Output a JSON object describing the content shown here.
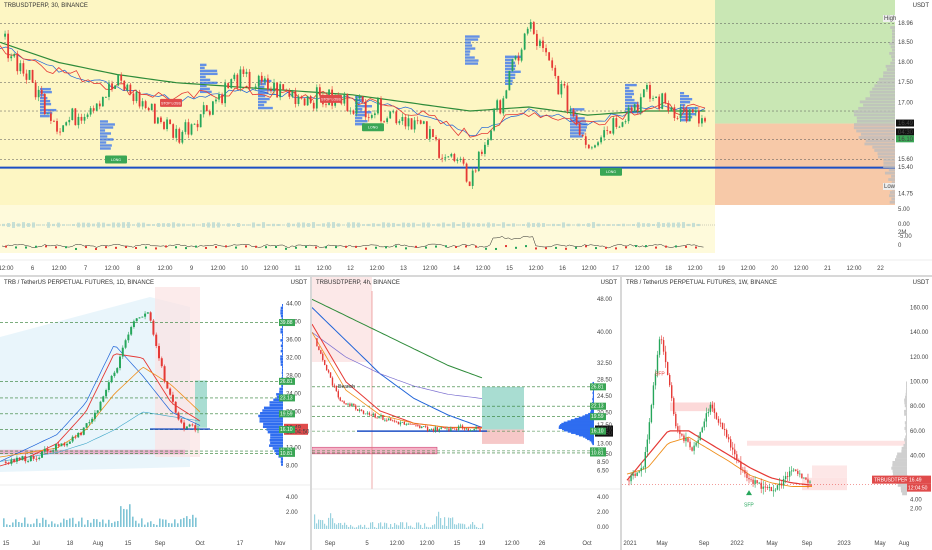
{
  "colors": {
    "bg_top": "#fdf6c3",
    "green_zone": "#c9e7b4",
    "red_zone": "#f7c9a8",
    "support_line": "#1d4fc4",
    "ma_green": "#2e8b3a",
    "ma_red": "#e53935",
    "ma_orange": "#ef8f1c",
    "ma_blue": "#1e63d8",
    "candle_up": "#26a65b",
    "candle_down": "#e53935",
    "volume_profile": "#2f6df0",
    "last_price_bg": "#111111",
    "tag_green": "#3aa655",
    "tag_red": "#e04b4b"
  },
  "top": {
    "title": "TRBUSDTPERP, 30, BINANCE",
    "unit": "USDT",
    "price_labels": [
      "18.96",
      "18.50",
      "18.00",
      "17.50",
      "17.00",
      "16.49",
      "04:30",
      "16.10",
      "15.60",
      "15.40",
      "14.75"
    ],
    "high_label": "High",
    "low_label": "Low",
    "osc_labels": [
      "5.00",
      "0.00",
      "-5.00",
      "2M",
      "0"
    ],
    "time_labels": [
      "12:00",
      "6",
      "12:00",
      "7",
      "12:00",
      "8",
      "12:00",
      "9",
      "12:00",
      "10",
      "12:00",
      "11",
      "12:00",
      "12",
      "12:00",
      "13",
      "12:00",
      "14",
      "12:00",
      "15",
      "12:00",
      "16",
      "12:00",
      "17",
      "12:00",
      "18",
      "12:00",
      "19",
      "12:00",
      "20",
      "12:00",
      "21",
      "12:00",
      "22"
    ],
    "boxes": [
      "STOP LOSS",
      "STOP LOSS",
      "LONG",
      "LONG",
      "LONG"
    ]
  },
  "bl": {
    "title": "TRB / TetherUS PERPETUAL FUTURES, 1D, BINANCE",
    "unit": "USDT",
    "price_labels": [
      "44.00",
      "40.00",
      "36.00",
      "32.00",
      "28.00",
      "24.00",
      "20.00",
      "16.49",
      "12:04:50",
      "12.00",
      "8.00"
    ],
    "tags": [
      "39.88",
      "26.81",
      "23.13",
      "19.59",
      "16.10",
      "11.32",
      "10.81"
    ],
    "vol_labels": [
      "4.00",
      "2.00"
    ],
    "time_labels": [
      "15",
      "Jul",
      "18",
      "Aug",
      "15",
      "Sep",
      "Oct",
      "17",
      "Nov"
    ]
  },
  "bm": {
    "title": "TRBUSDTPERP, 4h, BINANCE",
    "unit": "USDT",
    "annotation": "Bearish",
    "price_labels": [
      "48.00",
      "40.00",
      "32.50",
      "28.50",
      "24.50",
      "20.50",
      "17.50",
      "16.49",
      "04:50",
      "13.00",
      "10.50",
      "8.50",
      "6.50"
    ],
    "tags": [
      "26.81",
      "22.13",
      "19.59",
      "16.10",
      "11.32",
      "10.81"
    ],
    "vol_labels": [
      "4.00",
      "2.00",
      "0.00"
    ],
    "time_labels": [
      "Sep",
      "5",
      "12:00",
      "12:00",
      "15",
      "19",
      "12:00",
      "26",
      "Oct"
    ]
  },
  "br": {
    "title": "TRB / TetherUS PERPETUAL FUTURES, 1W, BINANCE",
    "unit": "USDT",
    "annotation": "SFP",
    "annotation2": "SFP",
    "price_labels": [
      "160.00",
      "140.00",
      "120.00",
      "100.00",
      "80.00",
      "60.00",
      "40.00",
      "20.00",
      "4.00",
      "2.00"
    ],
    "symbol_tag": "TRBUSDTPERP",
    "last_price": "16.49",
    "countdown": "12:04:50",
    "time_labels": [
      "2021",
      "May",
      "Sep",
      "2022",
      "May",
      "Sep",
      "2023",
      "May",
      "Aug"
    ]
  },
  "chart_data": [
    {
      "type": "line",
      "title": "TRBUSDTPERP, 30, BINANCE",
      "description_of_axis": "USDT",
      "ylim": [
        14.6,
        19.1
      ],
      "x": [
        "6",
        "7",
        "8",
        "9",
        "10",
        "11",
        "12",
        "13",
        "14",
        "15",
        "16",
        "17",
        "18"
      ],
      "series": [
        {
          "values": [
            18.6,
            16.4,
            17.5,
            16.2,
            17.6,
            17.2,
            17.0,
            16.6,
            15.1,
            18.9,
            16.0,
            17.2,
            16.5
          ]
        },
        {
          "values": [
            18.4,
            17.8,
            17.4,
            17.1,
            17.3,
            17.2,
            17.1,
            16.8,
            16.2,
            16.8,
            16.5,
            16.9,
            16.8
          ]
        }
      ],
      "levels": [
        15.4,
        16.1,
        16.49
      ]
    },
    {
      "type": "line",
      "title": "TRB / TetherUS PERPETUAL FUTURES, 1D, BINANCE",
      "ylim": [
        6,
        46
      ],
      "x": [
        "Jun 15",
        "Jul",
        "Jul 18",
        "Aug",
        "Aug 15",
        "Sep",
        "Sep 15"
      ],
      "series": [
        {
          "values": [
            9,
            10,
            12,
            15,
            27,
            42,
            17
          ]
        }
      ],
      "levels": [
        39.88,
        26.81,
        23.13,
        19.59,
        16.1,
        11.32,
        10.81
      ]
    },
    {
      "type": "line",
      "title": "TRBUSDTPERP, 4h, BINANCE",
      "ylim": [
        5,
        50
      ],
      "x": [
        "Sep",
        "5",
        "12",
        "15",
        "19"
      ],
      "series": [
        {
          "values": [
            38,
            24,
            20,
            17,
            16.5
          ]
        }
      ],
      "levels": [
        26.81,
        22.13,
        19.59,
        16.1,
        11.32,
        10.81
      ]
    },
    {
      "type": "line",
      "title": "TRB / TetherUS PERPETUAL FUTURES, 1W, BINANCE",
      "ylim": [
        0,
        170
      ],
      "x": [
        "2021",
        "May",
        "Sep",
        "2022",
        "May",
        "Sep"
      ],
      "series": [
        {
          "values": [
            30,
            140,
            45,
            60,
            18,
            25
          ]
        }
      ]
    }
  ]
}
